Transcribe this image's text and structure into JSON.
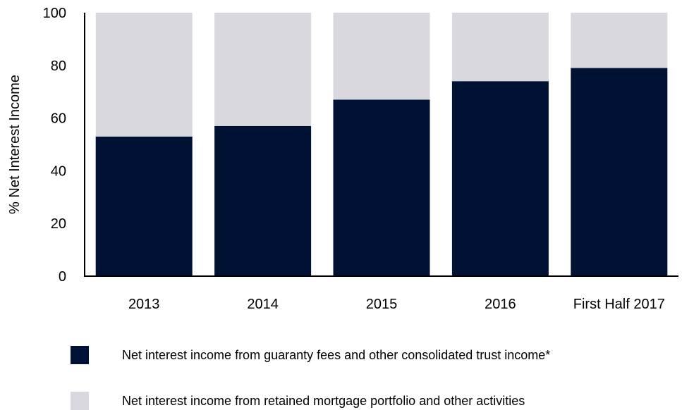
{
  "chart_data": {
    "type": "bar",
    "stacked": true,
    "percent_stacked": true,
    "categories": [
      "2013",
      "2014",
      "2015",
      "2016",
      "First Half 2017"
    ],
    "series": [
      {
        "name": "Net interest income from guaranty fees and other consolidated trust income*",
        "values": [
          53,
          57,
          67,
          74,
          79
        ],
        "color": "#001233"
      },
      {
        "name": "Net interest income from retained mortgage portfolio and other activities",
        "values": [
          47,
          43,
          33,
          26,
          21
        ],
        "color": "#d9d8de"
      }
    ],
    "title": "",
    "xlabel": "",
    "ylabel": "% Net Interest Income",
    "ylim": [
      0,
      100
    ],
    "yticks": [
      0,
      20,
      40,
      60,
      80,
      100
    ],
    "grid": false,
    "legend_position": "bottom"
  }
}
